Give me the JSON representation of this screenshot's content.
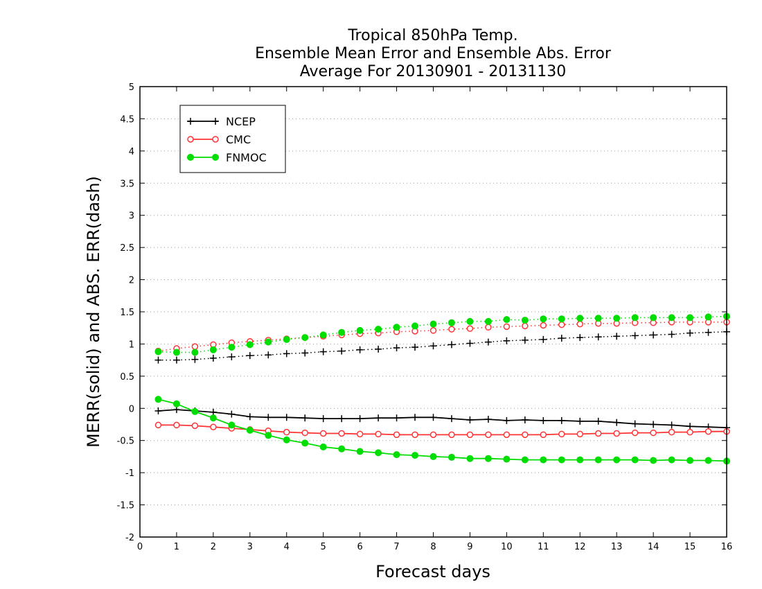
{
  "chart_data": {
    "type": "line",
    "title": [
      "Tropical 850hPa Temp.",
      "Ensemble Mean Error and Ensemble Abs. Error",
      "Average For 20130901 - 20131130"
    ],
    "xlabel": "Forecast days",
    "ylabel": "MERR(solid) and ABS. ERR(dash)",
    "xlim": [
      0,
      16
    ],
    "ylim": [
      -2,
      5
    ],
    "xticks": [
      "0",
      "1",
      "2",
      "3",
      "4",
      "5",
      "6",
      "7",
      "8",
      "9",
      "10",
      "11",
      "12",
      "13",
      "14",
      "15",
      "16"
    ],
    "yticks": [
      "5",
      "4.5",
      "4",
      "3.5",
      "3",
      "2.5",
      "2",
      "1.5",
      "1",
      "0.5",
      "0",
      "-0.5",
      "-1",
      "-1.5",
      "-2"
    ],
    "grid": true,
    "legend_position": "top-left",
    "x": [
      0.5,
      1,
      1.5,
      2,
      2.5,
      3,
      3.5,
      4,
      4.5,
      5,
      5.5,
      6,
      6.5,
      7,
      7.5,
      8,
      8.5,
      9,
      9.5,
      10,
      10.5,
      11,
      11.5,
      12,
      12.5,
      13,
      13.5,
      14,
      14.5,
      15,
      15.5,
      16
    ],
    "series": [
      {
        "name": "NCEP",
        "color": "#000000",
        "marker": "plus",
        "merr": [
          -0.04,
          -0.02,
          -0.04,
          -0.06,
          -0.09,
          -0.13,
          -0.14,
          -0.14,
          -0.15,
          -0.16,
          -0.16,
          -0.16,
          -0.15,
          -0.15,
          -0.14,
          -0.14,
          -0.16,
          -0.18,
          -0.17,
          -0.19,
          -0.18,
          -0.19,
          -0.19,
          -0.2,
          -0.2,
          -0.22,
          -0.24,
          -0.25,
          -0.26,
          -0.28,
          -0.29,
          -0.3
        ],
        "abserr": [
          0.75,
          0.75,
          0.76,
          0.78,
          0.8,
          0.82,
          0.83,
          0.85,
          0.86,
          0.88,
          0.89,
          0.91,
          0.92,
          0.94,
          0.95,
          0.97,
          0.99,
          1.01,
          1.03,
          1.05,
          1.06,
          1.07,
          1.09,
          1.1,
          1.11,
          1.12,
          1.13,
          1.14,
          1.15,
          1.17,
          1.18,
          1.19
        ]
      },
      {
        "name": "CMC",
        "color": "#ff3333",
        "marker": "open-circle",
        "merr": [
          -0.26,
          -0.26,
          -0.27,
          -0.29,
          -0.31,
          -0.33,
          -0.35,
          -0.37,
          -0.38,
          -0.39,
          -0.39,
          -0.4,
          -0.4,
          -0.41,
          -0.41,
          -0.41,
          -0.41,
          -0.41,
          -0.41,
          -0.41,
          -0.41,
          -0.41,
          -0.4,
          -0.4,
          -0.39,
          -0.39,
          -0.38,
          -0.38,
          -0.37,
          -0.37,
          -0.36,
          -0.36
        ],
        "abserr": [
          0.89,
          0.93,
          0.96,
          0.99,
          1.02,
          1.04,
          1.06,
          1.08,
          1.1,
          1.12,
          1.14,
          1.16,
          1.17,
          1.19,
          1.2,
          1.21,
          1.23,
          1.24,
          1.26,
          1.27,
          1.28,
          1.29,
          1.3,
          1.31,
          1.32,
          1.32,
          1.33,
          1.33,
          1.34,
          1.34,
          1.34,
          1.34
        ]
      },
      {
        "name": "FNMOC",
        "color": "#00dd00",
        "marker": "filled-circle",
        "merr": [
          0.14,
          0.07,
          -0.05,
          -0.15,
          -0.26,
          -0.34,
          -0.42,
          -0.49,
          -0.54,
          -0.6,
          -0.63,
          -0.67,
          -0.69,
          -0.72,
          -0.73,
          -0.75,
          -0.76,
          -0.78,
          -0.78,
          -0.79,
          -0.8,
          -0.8,
          -0.8,
          -0.8,
          -0.8,
          -0.8,
          -0.8,
          -0.81,
          -0.8,
          -0.81,
          -0.81,
          -0.82
        ],
        "abserr": [
          0.88,
          0.87,
          0.87,
          0.91,
          0.95,
          0.99,
          1.03,
          1.07,
          1.1,
          1.14,
          1.18,
          1.21,
          1.23,
          1.26,
          1.28,
          1.31,
          1.33,
          1.35,
          1.35,
          1.38,
          1.37,
          1.39,
          1.39,
          1.4,
          1.4,
          1.4,
          1.41,
          1.41,
          1.41,
          1.41,
          1.42,
          1.43
        ]
      }
    ]
  }
}
